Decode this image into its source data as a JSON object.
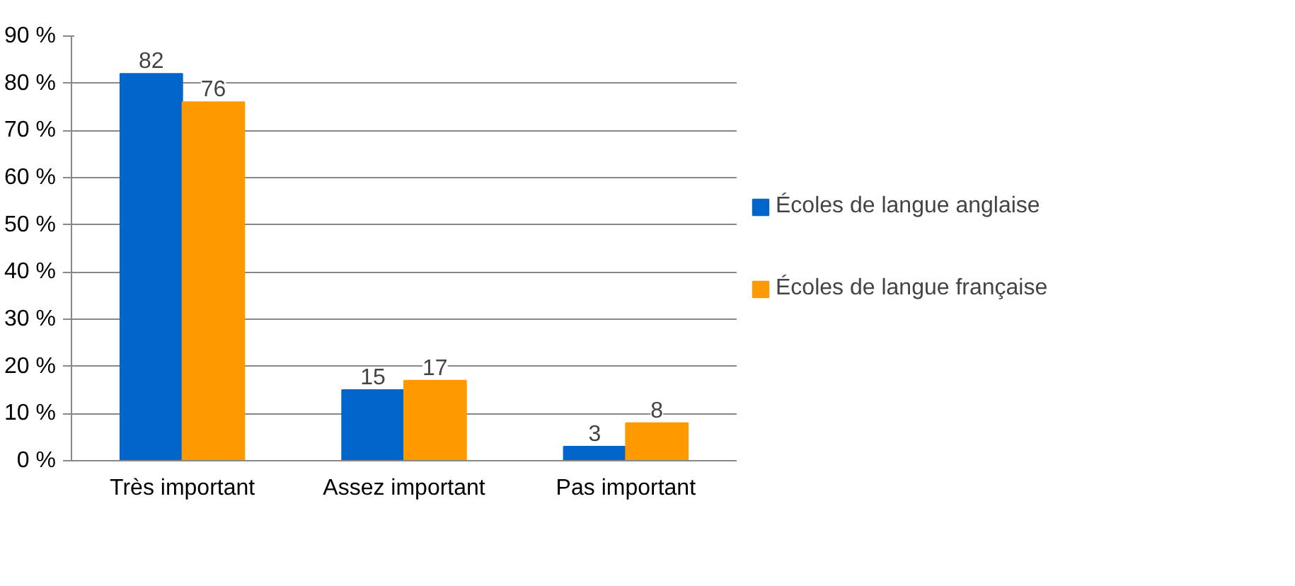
{
  "chart_data": {
    "type": "bar",
    "categories": [
      "Très important",
      "Assez important",
      "Pas important"
    ],
    "series": [
      {
        "name": "Écoles de langue anglaise",
        "color": "#0066cc",
        "values": [
          82,
          15,
          3
        ]
      },
      {
        "name": "Écoles de langue française",
        "color": "#ff9900",
        "values": [
          76,
          17,
          8
        ]
      }
    ],
    "ylim": [
      0,
      90
    ],
    "yticks": [
      {
        "value": 0,
        "label": "0 %"
      },
      {
        "value": 10,
        "label": "10 %"
      },
      {
        "value": 20,
        "label": "20 %"
      },
      {
        "value": 30,
        "label": "30 %"
      },
      {
        "value": 40,
        "label": "40 %"
      },
      {
        "value": 50,
        "label": "50 %"
      },
      {
        "value": 60,
        "label": "60 %"
      },
      {
        "value": 70,
        "label": "70 %"
      },
      {
        "value": 80,
        "label": "80 %"
      },
      {
        "value": 90,
        "label": "90 %"
      }
    ],
    "grid": "y",
    "legend": "right",
    "data_labels": true
  }
}
